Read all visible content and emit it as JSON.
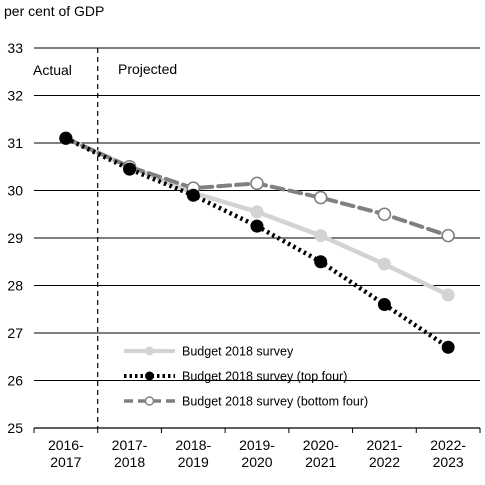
{
  "chart_data": {
    "type": "line",
    "ylabel": "per cent of GDP",
    "ylim": [
      25,
      33
    ],
    "yticks": [
      25,
      26,
      27,
      28,
      29,
      30,
      31,
      32,
      33
    ],
    "categories": [
      [
        "2016-",
        "2017"
      ],
      [
        "2017-",
        "2018"
      ],
      [
        "2018-",
        "2019"
      ],
      [
        "2019-",
        "2020"
      ],
      [
        "2020-",
        "2021"
      ],
      [
        "2021-",
        "2022"
      ],
      [
        "2022-",
        "2023"
      ]
    ],
    "regions": {
      "actual": "Actual",
      "projected": "Projected"
    },
    "grid": true,
    "legend_position": "bottom-center",
    "series": [
      {
        "name": "Budget 2018 survey",
        "style": "solid",
        "color": "#d3d3d3",
        "marker": "filled",
        "values": [
          31.1,
          30.5,
          29.95,
          29.55,
          29.05,
          28.45,
          27.8
        ]
      },
      {
        "name": "Budget 2018 survey (top four)",
        "style": "dotted",
        "color": "#000000",
        "marker": "filled",
        "values": [
          31.1,
          30.45,
          29.9,
          29.25,
          28.5,
          27.6,
          26.7
        ]
      },
      {
        "name": "Budget 2018 survey (bottom four)",
        "style": "dashed",
        "color": "#808080",
        "marker": "open",
        "values": [
          31.1,
          30.5,
          30.05,
          30.15,
          29.85,
          29.5,
          29.05
        ]
      }
    ]
  }
}
